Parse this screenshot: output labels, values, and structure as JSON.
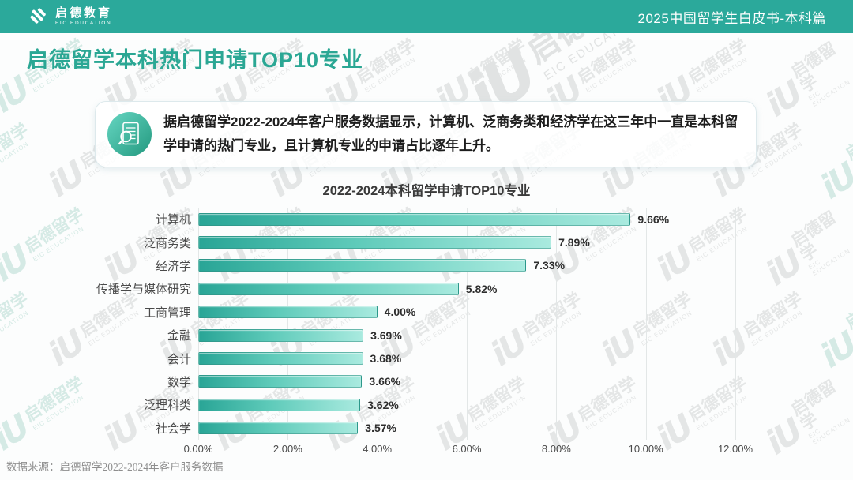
{
  "header": {
    "logo": {
      "name": "启德教育",
      "sub": "EIC EDUCATION"
    },
    "right_title": "2025中国留学生白皮书-本科篇"
  },
  "page": {
    "title": "启德留学本科热门申请TOP10专业"
  },
  "callout": {
    "icon": "document-magnifier-icon",
    "text": "据启德留学2022-2024年客户服务数据显示，计算机、泛商务类和经济学在这三年中一直是本科留学申请的热门专业，且计算机专业的申请占比逐年上升。"
  },
  "chart_data": {
    "type": "bar",
    "orientation": "horizontal",
    "title": "2022-2024本科留学申请TOP10专业",
    "categories": [
      "计算机",
      "泛商务类",
      "经济学",
      "传播学与媒体研究",
      "工商管理",
      "金融",
      "会计",
      "数学",
      "泛理科类",
      "社会学"
    ],
    "values": [
      9.66,
      7.89,
      7.33,
      5.82,
      4.0,
      3.69,
      3.68,
      3.66,
      3.62,
      3.57
    ],
    "value_labels": [
      "9.66%",
      "7.89%",
      "7.33%",
      "5.82%",
      "4.00%",
      "3.69%",
      "3.68%",
      "3.66%",
      "3.62%",
      "3.57%"
    ],
    "x_ticks": [
      "0.00%",
      "2.00%",
      "4.00%",
      "6.00%",
      "8.00%",
      "10.00%",
      "12.00%"
    ],
    "xlim": [
      0,
      12
    ],
    "grid": true,
    "legend": "none",
    "bar_color_start": "#29A596",
    "bar_color_mid": "#5FCBBA",
    "bar_color_end": "#A9EADF"
  },
  "footer": {
    "source": "数据来源：启德留学2022-2024年客户服务数据"
  },
  "watermark": {
    "glyph": "iU",
    "text": "启德留学",
    "subtext": "EIC EDUCATION",
    "color": "#e4e6e6",
    "edge_color": "#d5eae5"
  },
  "colors": {
    "header_bg": "#2BA99B",
    "page_title": "#2BA794"
  }
}
